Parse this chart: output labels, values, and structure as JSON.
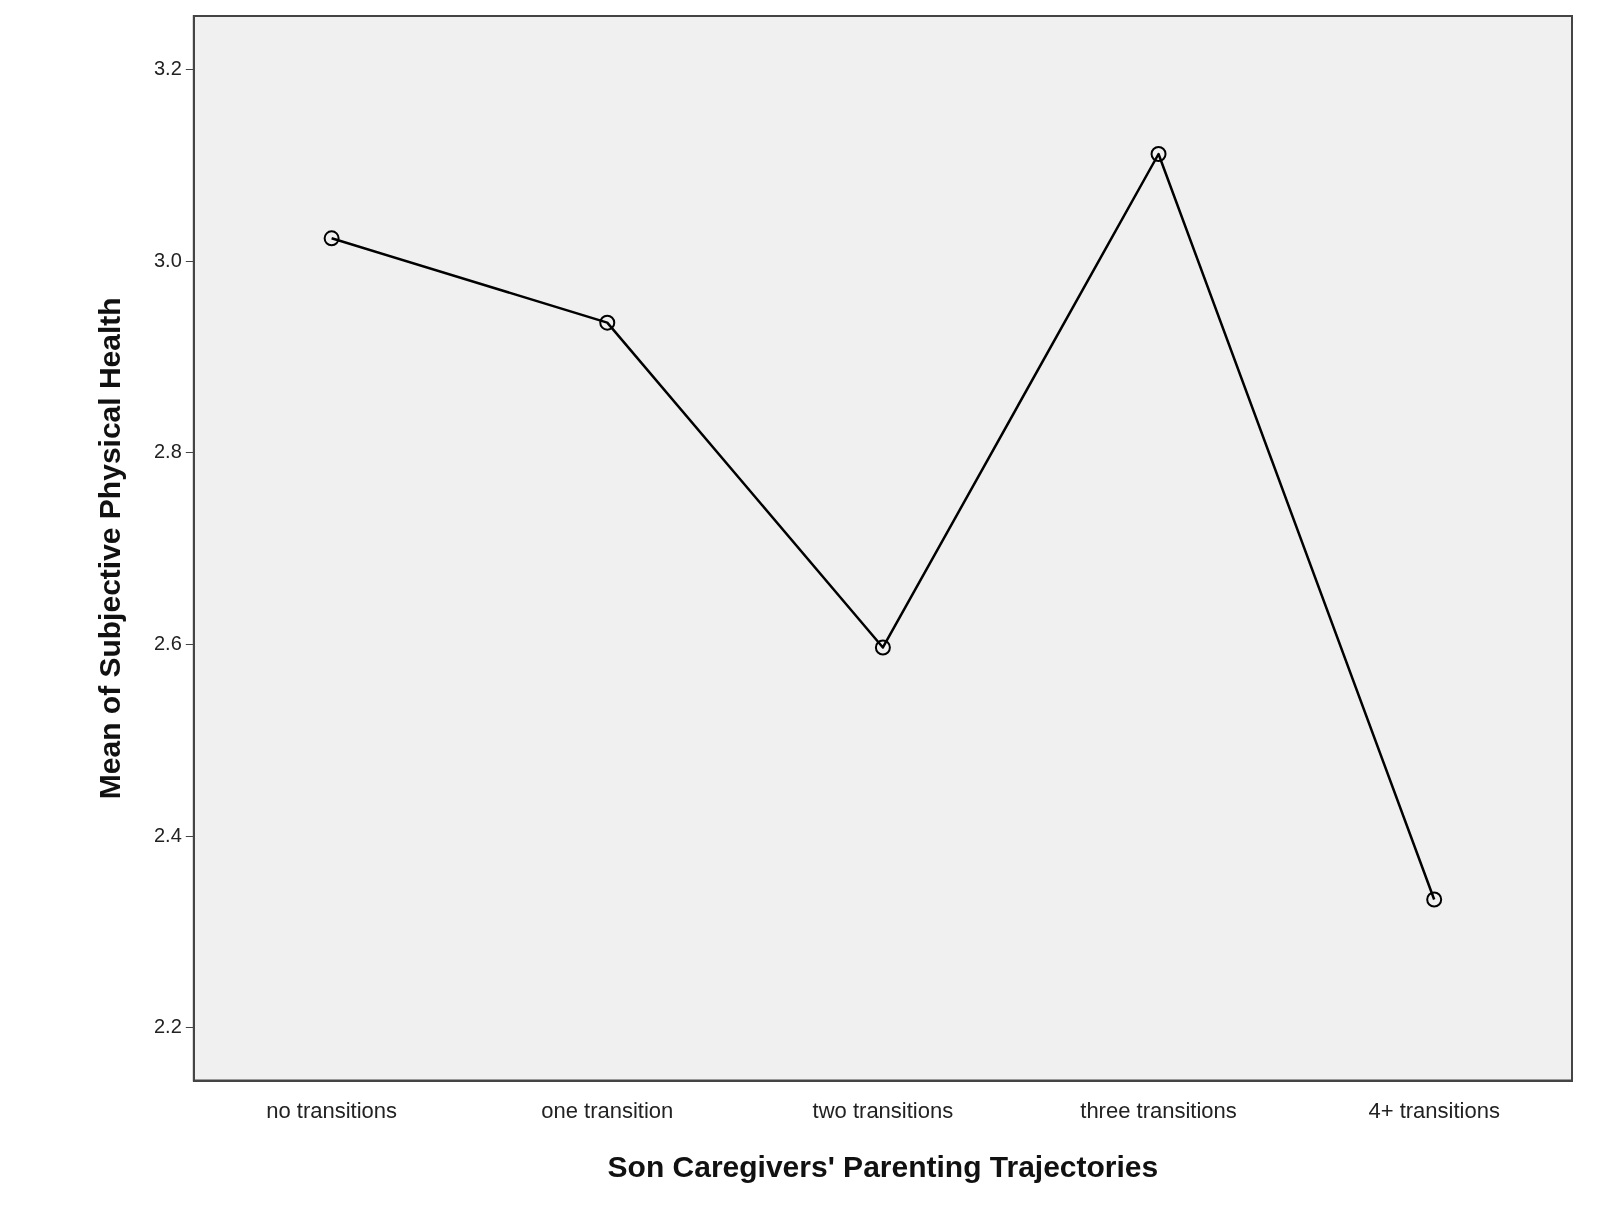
{
  "chart_data": {
    "type": "line",
    "xlabel": "Son Caregivers' Parenting Trajectories",
    "ylabel": "Mean of Subjective Physical Health",
    "categories": [
      "no transitions",
      "one transition",
      "two transitions",
      "three transitions",
      "4+ transitions"
    ],
    "series": [
      {
        "color": "#000000",
        "values": [
          3.024,
          2.936,
          2.597,
          3.112,
          2.334
        ]
      }
    ],
    "ylim": [
      2.145,
      3.256
    ],
    "yticks": [
      {
        "value": 2.2,
        "label": "2.2"
      },
      {
        "value": 2.4,
        "label": "2.4"
      },
      {
        "value": 2.6,
        "label": "2.6"
      },
      {
        "value": 2.8,
        "label": "2.8"
      },
      {
        "value": 3.0,
        "label": "3.0"
      },
      {
        "value": 3.2,
        "label": "3.2"
      }
    ],
    "grid": false,
    "legend": false,
    "marker": "circle",
    "line_style": "solid"
  }
}
